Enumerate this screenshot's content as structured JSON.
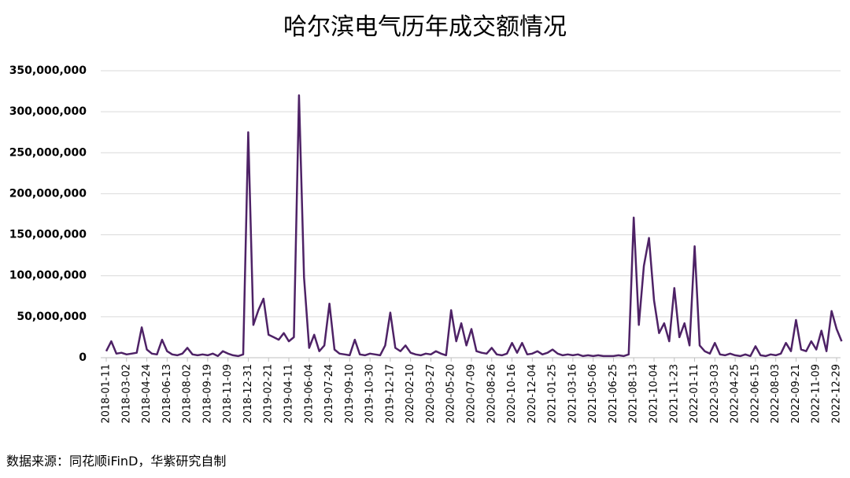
{
  "chart_data": {
    "type": "line",
    "title": "哈尔滨电气历年成交额情况",
    "source": "数据来源：同花顺iFinD，华紫研究自制",
    "categories": [
      "2018-01-11",
      null,
      null,
      null,
      "2018-03-02",
      null,
      null,
      null,
      "2018-04-24",
      null,
      null,
      null,
      "2018-06-13",
      null,
      null,
      null,
      "2018-08-02",
      null,
      null,
      null,
      "2018-09-19",
      null,
      null,
      null,
      "2018-11-09",
      null,
      null,
      null,
      "2018-12-31",
      null,
      null,
      null,
      "2019-02-21",
      null,
      null,
      null,
      "2019-04-11",
      null,
      null,
      null,
      "2019-06-04",
      null,
      null,
      null,
      "2019-07-24",
      null,
      null,
      null,
      "2019-09-10",
      null,
      null,
      null,
      "2019-10-30",
      null,
      null,
      null,
      "2019-12-17",
      null,
      null,
      null,
      "2020-02-10",
      null,
      null,
      null,
      "2020-03-27",
      null,
      null,
      null,
      "2020-05-20",
      null,
      null,
      null,
      "2020-07-09",
      null,
      null,
      null,
      "2020-08-26",
      null,
      null,
      null,
      "2020-10-16",
      null,
      null,
      null,
      "2020-12-04",
      null,
      null,
      null,
      "2021-01-25",
      null,
      null,
      null,
      "2021-03-16",
      null,
      null,
      null,
      "2021-05-06",
      null,
      null,
      null,
      "2021-06-25",
      null,
      null,
      null,
      "2021-08-13",
      null,
      null,
      null,
      "2021-10-04",
      null,
      null,
      null,
      "2021-11-23",
      null,
      null,
      null,
      "2022-01-11",
      null,
      null,
      null,
      "2022-03-03",
      null,
      null,
      null,
      "2022-04-25",
      null,
      null,
      null,
      "2022-06-15",
      null,
      null,
      null,
      "2022-08-03",
      null,
      null,
      null,
      "2022-09-21",
      null,
      null,
      null,
      "2022-11-09",
      null,
      null,
      null,
      "2022-12-29",
      null
    ],
    "series": [
      {
        "name": "成交额",
        "color": "#4e2266",
        "values": [
          8000000,
          20000000,
          5000000,
          6000000,
          4000000,
          5000000,
          6000000,
          37000000,
          10000000,
          5000000,
          4000000,
          22000000,
          8000000,
          4000000,
          3000000,
          5000000,
          12000000,
          4000000,
          3000000,
          4000000,
          3000000,
          5000000,
          2000000,
          8000000,
          5000000,
          3000000,
          2000000,
          4000000,
          275000000,
          40000000,
          58000000,
          72000000,
          28000000,
          25000000,
          22000000,
          30000000,
          20000000,
          25000000,
          320000000,
          98000000,
          12000000,
          28000000,
          8000000,
          15000000,
          66000000,
          10000000,
          5000000,
          4000000,
          3000000,
          22000000,
          4000000,
          3000000,
          5000000,
          4000000,
          3000000,
          15000000,
          55000000,
          12000000,
          8000000,
          15000000,
          6000000,
          4000000,
          3000000,
          5000000,
          4000000,
          8000000,
          5000000,
          3000000,
          58000000,
          20000000,
          42000000,
          15000000,
          35000000,
          8000000,
          6000000,
          5000000,
          12000000,
          4000000,
          3000000,
          5000000,
          18000000,
          6000000,
          18000000,
          4000000,
          5000000,
          8000000,
          4000000,
          6000000,
          10000000,
          5000000,
          3000000,
          4000000,
          3000000,
          4000000,
          2000000,
          3000000,
          2000000,
          3000000,
          2000000,
          2000000,
          2000000,
          3000000,
          2000000,
          4000000,
          171000000,
          40000000,
          112000000,
          146000000,
          70000000,
          30000000,
          42000000,
          20000000,
          85000000,
          25000000,
          42000000,
          15000000,
          136000000,
          15000000,
          8000000,
          5000000,
          18000000,
          4000000,
          3000000,
          5000000,
          3000000,
          2000000,
          4000000,
          2000000,
          14000000,
          3000000,
          2000000,
          4000000,
          3000000,
          5000000,
          18000000,
          8000000,
          46000000,
          10000000,
          8000000,
          20000000,
          10000000,
          33000000,
          8000000,
          57000000,
          35000000,
          20000000
        ]
      }
    ],
    "ylim": [
      0,
      350000000
    ],
    "yticks": [
      0,
      {
        "value": 50000000,
        "label": "50,000,000"
      },
      {
        "value": 100000000,
        "label": "100,000,000"
      },
      {
        "value": 150000000,
        "label": "150,000,000"
      },
      {
        "value": 200000000,
        "label": "200,000,000"
      },
      {
        "value": 250000000,
        "label": "250,000,000"
      },
      {
        "value": 300000000,
        "label": "300,000,000"
      },
      {
        "value": 350000000,
        "label": "350,000,000"
      }
    ],
    "grid": true
  }
}
